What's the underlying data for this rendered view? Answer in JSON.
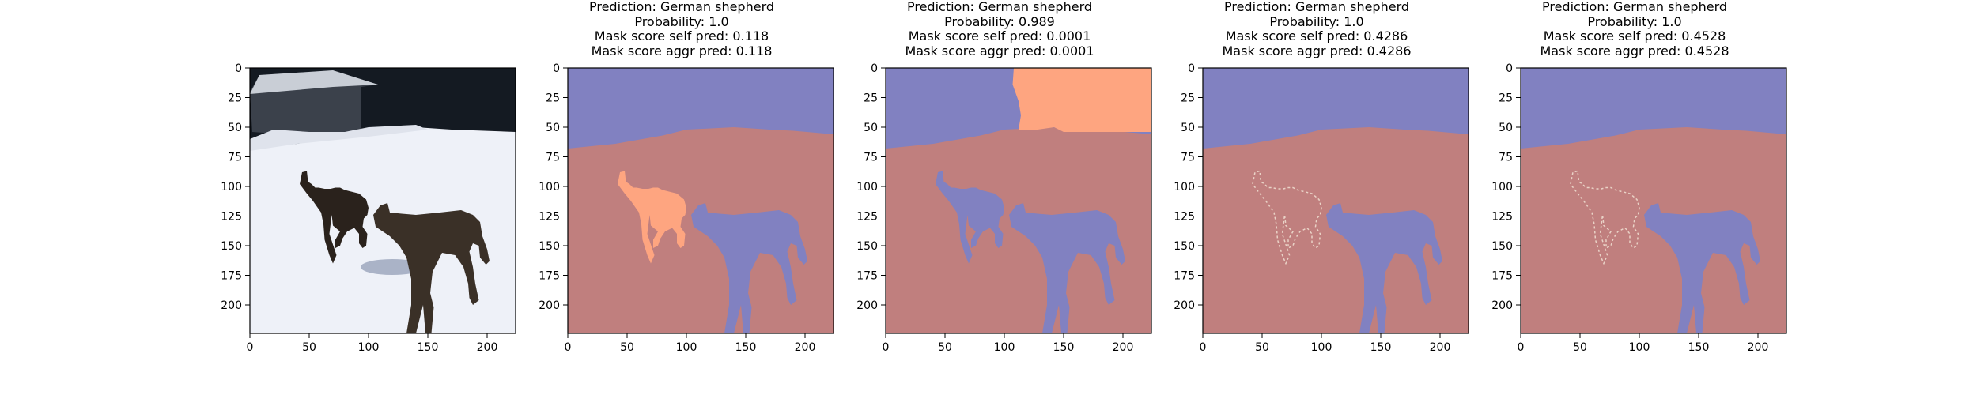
{
  "figure": {
    "panels": [
      {
        "id": "original",
        "kind": "photo",
        "title_lines": []
      },
      {
        "id": "mask-1",
        "kind": "mask",
        "title_lines": [
          "Prediction: German shepherd",
          "Probability: 1.0",
          "Mask score self pred: 0.118",
          "Mask score aggr pred: 0.118"
        ]
      },
      {
        "id": "mask-2",
        "kind": "mask",
        "title_lines": [
          "Prediction: German shepherd",
          "Probability: 0.989",
          "Mask score self pred: 0.0001",
          "Mask score aggr pred: 0.0001"
        ]
      },
      {
        "id": "mask-3",
        "kind": "mask",
        "title_lines": [
          "Prediction: German shepherd",
          "Probability: 1.0",
          "Mask score self pred: 0.4286",
          "Mask score aggr pred: 0.4286"
        ]
      },
      {
        "id": "mask-4",
        "kind": "mask",
        "title_lines": [
          "Prediction: German shepherd",
          "Probability: 1.0",
          "Mask score self pred: 0.4528",
          "Mask score aggr pred: 0.4528"
        ]
      }
    ]
  },
  "colors": {
    "sky": "#8181c1",
    "ground": "#c07f7e",
    "orange_region": "#fea580",
    "dog_blue": "#8181c1",
    "photo_sky": "#141a22",
    "photo_snow": "#eef1f8"
  },
  "chart_data": [
    {
      "type": "heatmap",
      "panel": "original",
      "xlim": [
        0,
        224
      ],
      "ylim": [
        224,
        0
      ],
      "xticks": [
        0,
        50,
        100,
        150,
        200
      ],
      "yticks": [
        0,
        25,
        50,
        75,
        100,
        125,
        150,
        175,
        200
      ],
      "grid": false
    },
    {
      "type": "heatmap",
      "panel": "mask-1",
      "xlim": [
        0,
        224
      ],
      "ylim": [
        224,
        0
      ],
      "xticks": [
        0,
        50,
        100,
        150,
        200
      ],
      "yticks": [
        0,
        25,
        50,
        75,
        100,
        125,
        150,
        175,
        200
      ],
      "grid": false
    },
    {
      "type": "heatmap",
      "panel": "mask-2",
      "xlim": [
        0,
        224
      ],
      "ylim": [
        224,
        0
      ],
      "xticks": [
        0,
        50,
        100,
        150,
        200
      ],
      "yticks": [
        0,
        25,
        50,
        75,
        100,
        125,
        150,
        175,
        200
      ],
      "grid": false
    },
    {
      "type": "heatmap",
      "panel": "mask-3",
      "xlim": [
        0,
        224
      ],
      "ylim": [
        224,
        0
      ],
      "xticks": [
        0,
        50,
        100,
        150,
        200
      ],
      "yticks": [
        0,
        25,
        50,
        75,
        100,
        125,
        150,
        175,
        200
      ],
      "grid": false
    },
    {
      "type": "heatmap",
      "panel": "mask-4",
      "xlim": [
        0,
        224
      ],
      "ylim": [
        224,
        0
      ],
      "xticks": [
        0,
        50,
        100,
        150,
        200
      ],
      "yticks": [
        0,
        25,
        50,
        75,
        100,
        125,
        150,
        175,
        200
      ],
      "grid": false
    }
  ]
}
